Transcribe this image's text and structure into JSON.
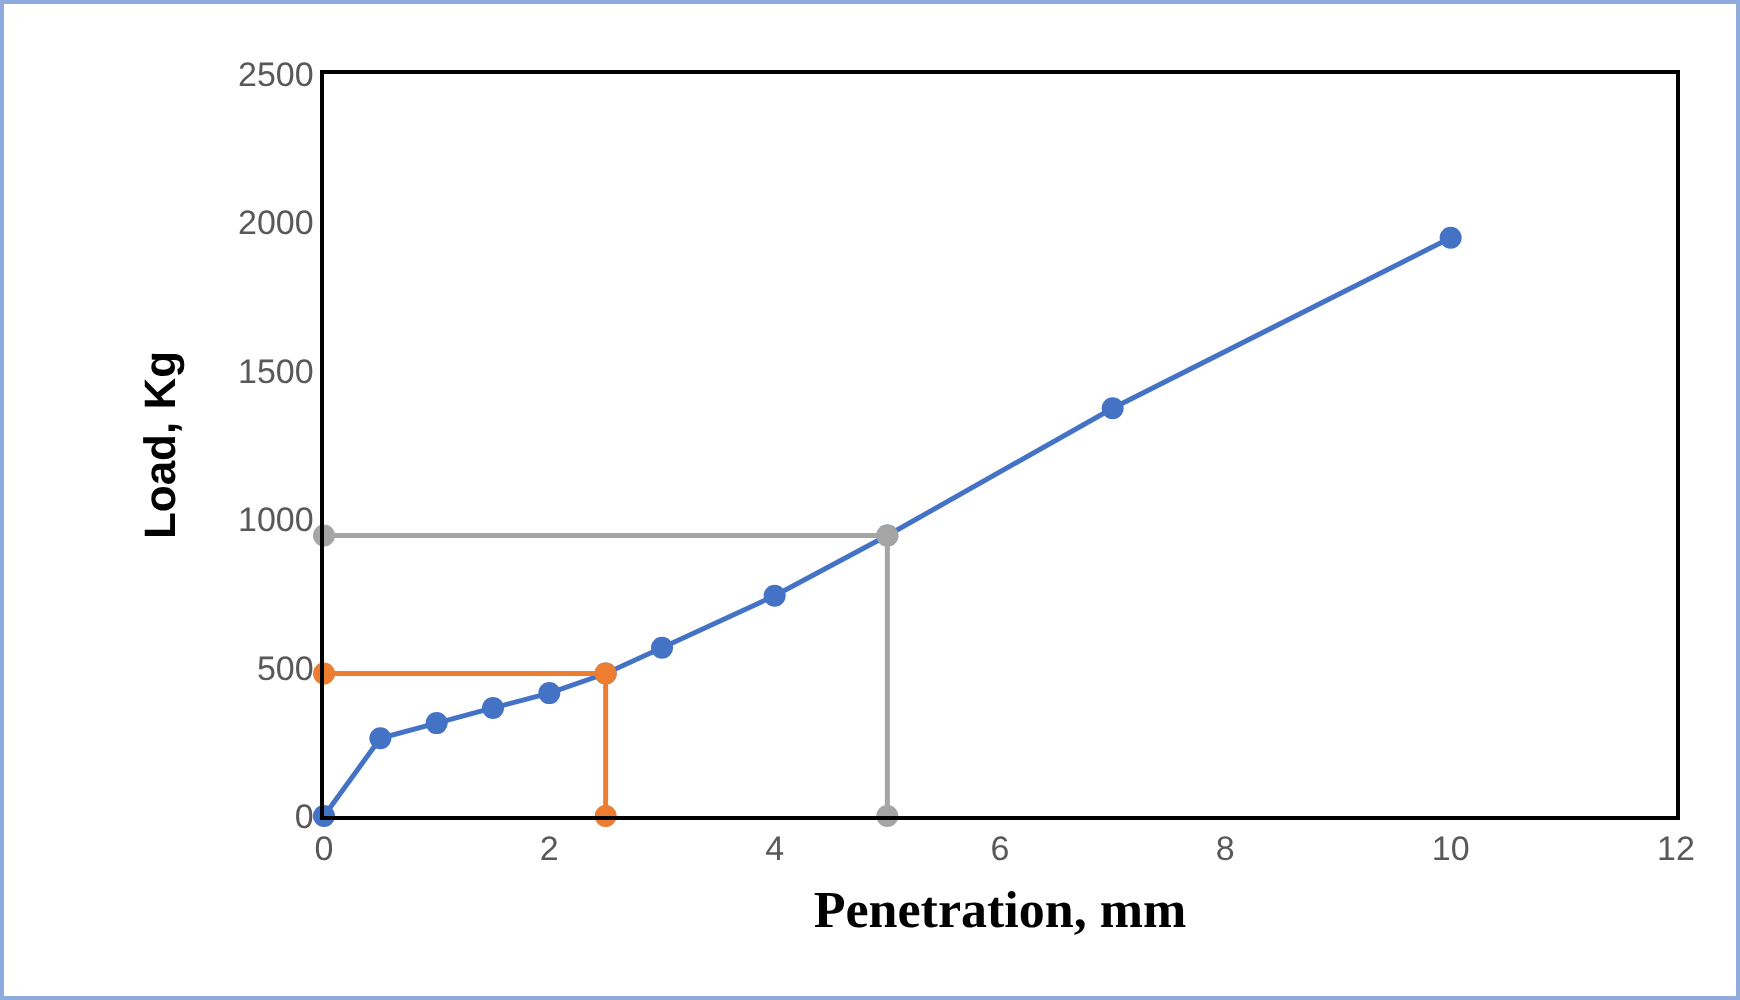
{
  "chart_data": {
    "type": "line",
    "xlabel": "Penetration, mm",
    "ylabel": "Load, Kg",
    "xlim": [
      0,
      12
    ],
    "xticks": [
      0,
      2,
      4,
      6,
      8,
      10,
      12
    ],
    "ylim": [
      0,
      2500
    ],
    "yticks": [
      0,
      500,
      1000,
      1500,
      2000,
      2500
    ],
    "grid": false,
    "marker": "circle",
    "line_style": "solid",
    "series": [
      {
        "color": "#4472c4",
        "x": [
          0,
          0.5,
          1,
          1.5,
          2,
          2.5,
          3,
          4,
          5,
          7,
          10
        ],
        "values": [
          0,
          262,
          313,
          364,
          414,
          480,
          567,
          742,
          945,
          1374,
          1948
        ]
      },
      {
        "color": "#ed7d31",
        "x": [
          0,
          2.5,
          2.5
        ],
        "values": [
          480,
          480,
          0
        ]
      },
      {
        "color": "#a5a5a5",
        "x": [
          0,
          5,
          5
        ],
        "values": [
          945,
          945,
          0
        ]
      }
    ]
  }
}
